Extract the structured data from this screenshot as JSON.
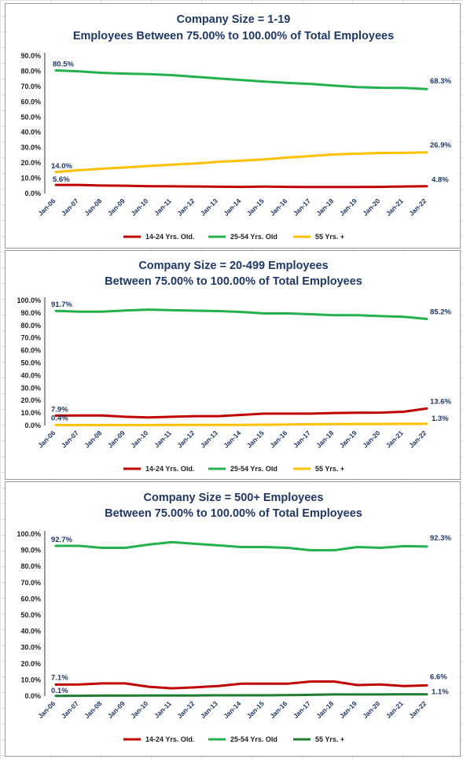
{
  "chart_data": [
    {
      "type": "line",
      "title": "Company Size = 1-19",
      "subtitle": "Employees Between 75.00% to 100.00% of Total Employees",
      "categories": [
        "Jan-06",
        "Jan-07",
        "Jan-08",
        "Jan-09",
        "Jan-10",
        "Jan-11",
        "Jan-12",
        "Jan-13",
        "Jan-14",
        "Jan-15",
        "Jan-16",
        "Jan-17",
        "Jan-18",
        "Jan-19",
        "Jan-20",
        "Jan-21",
        "Jan-22"
      ],
      "ylim": [
        0,
        90
      ],
      "yticks": [
        "0.0%",
        "10.0%",
        "20.0%",
        "30.0%",
        "40.0%",
        "50.0%",
        "60.0%",
        "70.0%",
        "80.0%",
        "90.0%"
      ],
      "series": [
        {
          "name": "14-24 Yrs. Old.",
          "color": "#c00000",
          "values": [
            5.6,
            5.6,
            5.2,
            5.1,
            4.8,
            4.7,
            4.6,
            4.4,
            4.3,
            4.5,
            4.3,
            4.2,
            4.2,
            4.2,
            4.3,
            4.6,
            4.8
          ],
          "start_label": "5.6%",
          "end_label": "4.8%"
        },
        {
          "name": "25-54 Yrs. Old",
          "color": "#22b14c",
          "values": [
            80.5,
            79.8,
            78.9,
            78.4,
            78.0,
            77.4,
            76.3,
            75.2,
            74.2,
            73.2,
            72.3,
            71.6,
            70.5,
            69.6,
            69.1,
            69.0,
            68.3
          ],
          "start_label": "80.5%",
          "end_label": "68.3%"
        },
        {
          "name": "55 Yrs. +",
          "color": "#ffc000",
          "values": [
            14.0,
            15.2,
            16.2,
            17.0,
            18.0,
            18.8,
            19.6,
            20.7,
            21.5,
            22.3,
            23.5,
            24.5,
            25.5,
            26.0,
            26.5,
            26.6,
            26.9
          ],
          "start_label": "14.0%",
          "end_label": "26.9%"
        }
      ]
    },
    {
      "type": "line",
      "title": "Company Size = 20-499 Employees",
      "subtitle": "Between 75.00% to 100.00% of Total Employees",
      "categories": [
        "Jan-06",
        "Jan-07",
        "Jan-08",
        "Jan-09",
        "Jan-10",
        "Jan-11",
        "Jan-12",
        "Jan-13",
        "Jan-14",
        "Jan-15",
        "Jan-16",
        "Jan-17",
        "Jan-18",
        "Jan-19",
        "Jan-20",
        "Jan-21",
        "Jan-22"
      ],
      "ylim": [
        0,
        100
      ],
      "yticks": [
        "0.0%",
        "10.0%",
        "20.0%",
        "30.0%",
        "40.0%",
        "50.0%",
        "60.0%",
        "70.0%",
        "80.0%",
        "90.0%",
        "100.0%"
      ],
      "series": [
        {
          "name": "14-24 Yrs. Old.",
          "color": "#c00000",
          "values": [
            7.9,
            8.0,
            8.0,
            7.0,
            6.5,
            7.0,
            7.5,
            7.5,
            8.5,
            9.5,
            9.5,
            9.5,
            10.0,
            10.2,
            10.3,
            11.0,
            13.6
          ],
          "start_label": "7.9%",
          "end_label": "13.6%"
        },
        {
          "name": "25-54 Yrs. Old",
          "color": "#22b14c",
          "values": [
            91.7,
            91.0,
            91.0,
            92.0,
            92.7,
            92.2,
            91.8,
            91.5,
            90.8,
            89.6,
            89.6,
            89.0,
            88.2,
            88.2,
            87.5,
            87.0,
            85.2
          ],
          "start_label": "91.7%",
          "end_label": "85.2%"
        },
        {
          "name": "55 Yrs. +",
          "color": "#ffc000",
          "values": [
            0.4,
            0.4,
            0.4,
            0.4,
            0.4,
            0.5,
            0.5,
            0.5,
            0.5,
            0.6,
            0.8,
            1.0,
            1.1,
            1.2,
            1.2,
            1.3,
            1.3
          ],
          "start_label": "0.4%",
          "end_label": "1.3%"
        }
      ]
    },
    {
      "type": "line",
      "title": "Company Size = 500+ Employees",
      "subtitle": "Between 75.00% to 100.00% of Total Employees",
      "categories": [
        "Jan-06",
        "Jan-07",
        "Jan-08",
        "Jan-09",
        "Jan-10",
        "Jan-11",
        "Jan-12",
        "Jan-13",
        "Jan-14",
        "Jan-15",
        "Jan-16",
        "Jan-17",
        "Jan-18",
        "Jan-19",
        "Jan-20",
        "Jan-21",
        "Jan-22"
      ],
      "ylim": [
        0,
        100
      ],
      "yticks": [
        "0.0%",
        "10.0%",
        "20.0%",
        "30.0%",
        "40.0%",
        "50.0%",
        "60.0%",
        "70.0%",
        "80.0%",
        "90.0%",
        "100.0%"
      ],
      "series": [
        {
          "name": "14-24 Yrs. Old.",
          "color": "#c00000",
          "values": [
            7.1,
            7.2,
            7.8,
            7.8,
            5.8,
            4.8,
            5.4,
            6.2,
            7.6,
            7.6,
            7.6,
            9.0,
            9.0,
            6.8,
            7.2,
            6.2,
            6.6
          ],
          "start_label": "7.1%",
          "end_label": "6.6%"
        },
        {
          "name": "25-54 Yrs. Old",
          "color": "#22b14c",
          "values": [
            92.7,
            92.7,
            91.5,
            91.5,
            93.5,
            95.0,
            94.0,
            93.0,
            92.0,
            92.0,
            91.5,
            90.0,
            90.0,
            92.0,
            91.5,
            92.5,
            92.3
          ],
          "start_label": "92.7%",
          "end_label": "92.3%"
        },
        {
          "name": "55 Yrs. +",
          "color": "#1e7b33",
          "values": [
            0.1,
            0.2,
            0.3,
            0.3,
            0.4,
            0.4,
            0.4,
            0.5,
            0.5,
            0.5,
            0.6,
            0.8,
            1.0,
            1.0,
            1.0,
            1.1,
            1.1
          ],
          "start_label": "0.1%",
          "end_label": "1.1%"
        }
      ]
    }
  ]
}
